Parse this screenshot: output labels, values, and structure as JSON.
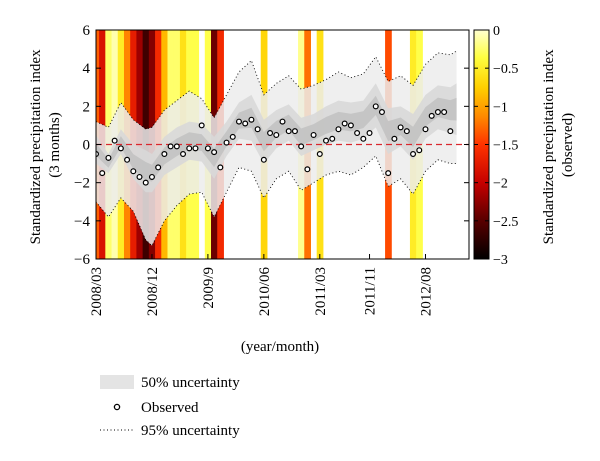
{
  "chart_data": {
    "type": "scatter",
    "ylabel_lines": [
      "Standardized precipitation index",
      "(3 months)"
    ],
    "xlabel": "(year/month)",
    "colorbar_label_lines": [
      "Standardized precipitation index",
      "(observed)"
    ],
    "ylim": [
      -6,
      6
    ],
    "yticks": [
      "6",
      "4",
      "2",
      "0",
      "−2",
      "−4",
      "−6"
    ],
    "colorbar_range": [
      -3,
      0
    ],
    "colorbar_ticks": [
      "0",
      "−0.5",
      "−1",
      "−1.5",
      "−2",
      "−2.5",
      "−3"
    ],
    "xlim": [
      0,
      60
    ],
    "xtick_labels": [
      "2008/03",
      "2008/12",
      "2009/9",
      "2010/06",
      "2011/03",
      "2011/11",
      "2012/08"
    ],
    "xtick_positions": [
      0,
      9,
      18,
      27,
      36,
      44,
      53
    ],
    "legend": {
      "band50": "50% uncertainty",
      "observed": "Observed",
      "band95": "95% uncertainty"
    },
    "observed": [
      {
        "x": 0,
        "y": -0.5
      },
      {
        "x": 1,
        "y": -1.5
      },
      {
        "x": 2,
        "y": -0.7
      },
      {
        "x": 3,
        "y": 0.2
      },
      {
        "x": 4,
        "y": -0.2
      },
      {
        "x": 5,
        "y": -0.8
      },
      {
        "x": 6,
        "y": -1.4
      },
      {
        "x": 7,
        "y": -1.7
      },
      {
        "x": 8,
        "y": -2.0
      },
      {
        "x": 9,
        "y": -1.7
      },
      {
        "x": 10,
        "y": -1.2
      },
      {
        "x": 11,
        "y": -0.5
      },
      {
        "x": 12,
        "y": -0.1
      },
      {
        "x": 13,
        "y": -0.1
      },
      {
        "x": 14,
        "y": -0.5
      },
      {
        "x": 15,
        "y": -0.2
      },
      {
        "x": 16,
        "y": -0.2
      },
      {
        "x": 17,
        "y": 1.0
      },
      {
        "x": 18,
        "y": -0.2
      },
      {
        "x": 19,
        "y": -0.4
      },
      {
        "x": 20,
        "y": -1.2
      },
      {
        "x": 21,
        "y": 0.1
      },
      {
        "x": 22,
        "y": 0.4
      },
      {
        "x": 23,
        "y": 1.2
      },
      {
        "x": 24,
        "y": 1.1
      },
      {
        "x": 25,
        "y": 1.3
      },
      {
        "x": 26,
        "y": 0.8
      },
      {
        "x": 27,
        "y": -0.8
      },
      {
        "x": 28,
        "y": 0.6
      },
      {
        "x": 29,
        "y": 0.5
      },
      {
        "x": 30,
        "y": 1.2
      },
      {
        "x": 31,
        "y": 0.7
      },
      {
        "x": 32,
        "y": 0.7
      },
      {
        "x": 33,
        "y": -0.1
      },
      {
        "x": 34,
        "y": -1.3
      },
      {
        "x": 35,
        "y": 0.5
      },
      {
        "x": 36,
        "y": -0.5
      },
      {
        "x": 37,
        "y": 0.2
      },
      {
        "x": 38,
        "y": 0.3
      },
      {
        "x": 39,
        "y": 0.8
      },
      {
        "x": 40,
        "y": 1.1
      },
      {
        "x": 41,
        "y": 1.0
      },
      {
        "x": 42,
        "y": 0.6
      },
      {
        "x": 43,
        "y": 0.3
      },
      {
        "x": 44,
        "y": 0.6
      },
      {
        "x": 45,
        "y": 2.0
      },
      {
        "x": 46,
        "y": 1.7
      },
      {
        "x": 47,
        "y": -1.5
      },
      {
        "x": 48,
        "y": 0.3
      },
      {
        "x": 49,
        "y": 0.9
      },
      {
        "x": 50,
        "y": 0.7
      },
      {
        "x": 51,
        "y": -0.5
      },
      {
        "x": 52,
        "y": -0.3
      },
      {
        "x": 53,
        "y": 0.8
      },
      {
        "x": 54,
        "y": 1.5
      },
      {
        "x": 55,
        "y": 1.7
      },
      {
        "x": 56,
        "y": 1.7
      },
      {
        "x": 57,
        "y": 0.7
      }
    ],
    "band50": [
      {
        "x": 0,
        "lo": -1.0,
        "hi": 0.5
      },
      {
        "x": 2,
        "lo": -1.5,
        "hi": -0.5
      },
      {
        "x": 4,
        "lo": -0.5,
        "hi": 0.8
      },
      {
        "x": 6,
        "lo": -1.8,
        "hi": 0.0
      },
      {
        "x": 8,
        "lo": -2.5,
        "hi": -0.3
      },
      {
        "x": 9,
        "lo": -2.5,
        "hi": -0.5
      },
      {
        "x": 11,
        "lo": -1.6,
        "hi": 0.4
      },
      {
        "x": 13,
        "lo": -1.2,
        "hi": 0.9
      },
      {
        "x": 15,
        "lo": -0.8,
        "hi": 1.2
      },
      {
        "x": 17,
        "lo": -0.9,
        "hi": 1.1
      },
      {
        "x": 19,
        "lo": -1.8,
        "hi": 0.4
      },
      {
        "x": 21,
        "lo": -0.6,
        "hi": 1.2
      },
      {
        "x": 23,
        "lo": 0.3,
        "hi": 2.2
      },
      {
        "x": 25,
        "lo": 0.2,
        "hi": 2.6
      },
      {
        "x": 27,
        "lo": -1.0,
        "hi": 1.3
      },
      {
        "x": 29,
        "lo": -0.2,
        "hi": 1.8
      },
      {
        "x": 31,
        "lo": 0.2,
        "hi": 2.1
      },
      {
        "x": 33,
        "lo": -0.6,
        "hi": 1.4
      },
      {
        "x": 35,
        "lo": -0.3,
        "hi": 1.6
      },
      {
        "x": 37,
        "lo": 0.0,
        "hi": 2.0
      },
      {
        "x": 39,
        "lo": 0.2,
        "hi": 2.3
      },
      {
        "x": 41,
        "lo": 0.1,
        "hi": 2.2
      },
      {
        "x": 43,
        "lo": 0.3,
        "hi": 2.3
      },
      {
        "x": 45,
        "lo": 0.9,
        "hi": 3.2
      },
      {
        "x": 47,
        "lo": -0.5,
        "hi": 1.9
      },
      {
        "x": 49,
        "lo": -0.1,
        "hi": 2.0
      },
      {
        "x": 51,
        "lo": -0.8,
        "hi": 1.6
      },
      {
        "x": 53,
        "lo": 0.3,
        "hi": 2.6
      },
      {
        "x": 55,
        "lo": 0.8,
        "hi": 3.1
      },
      {
        "x": 57,
        "lo": 0.6,
        "hi": 3.0
      },
      {
        "x": 58,
        "lo": 0.5,
        "hi": 3.2
      }
    ],
    "band95": [
      {
        "x": 0,
        "lo": -3.0,
        "hi": 1.2
      },
      {
        "x": 2,
        "lo": -3.8,
        "hi": 0.9
      },
      {
        "x": 4,
        "lo": -2.8,
        "hi": 2.2
      },
      {
        "x": 6,
        "lo": -3.5,
        "hi": 1.3
      },
      {
        "x": 8,
        "lo": -5.0,
        "hi": 0.8
      },
      {
        "x": 9,
        "lo": -5.3,
        "hi": 0.9
      },
      {
        "x": 11,
        "lo": -4.0,
        "hi": 1.8
      },
      {
        "x": 13,
        "lo": -3.2,
        "hi": 2.3
      },
      {
        "x": 15,
        "lo": -2.6,
        "hi": 2.8
      },
      {
        "x": 17,
        "lo": -2.5,
        "hi": 2.4
      },
      {
        "x": 19,
        "lo": -3.8,
        "hi": 1.4
      },
      {
        "x": 21,
        "lo": -2.5,
        "hi": 2.6
      },
      {
        "x": 23,
        "lo": -1.2,
        "hi": 3.8
      },
      {
        "x": 25,
        "lo": -1.4,
        "hi": 4.4
      },
      {
        "x": 27,
        "lo": -2.8,
        "hi": 2.6
      },
      {
        "x": 29,
        "lo": -1.8,
        "hi": 3.2
      },
      {
        "x": 31,
        "lo": -1.4,
        "hi": 3.6
      },
      {
        "x": 33,
        "lo": -2.4,
        "hi": 2.9
      },
      {
        "x": 35,
        "lo": -2.0,
        "hi": 3.1
      },
      {
        "x": 37,
        "lo": -1.6,
        "hi": 3.4
      },
      {
        "x": 39,
        "lo": -1.4,
        "hi": 3.8
      },
      {
        "x": 41,
        "lo": -1.6,
        "hi": 3.5
      },
      {
        "x": 43,
        "lo": -1.2,
        "hi": 3.7
      },
      {
        "x": 45,
        "lo": -0.6,
        "hi": 4.6
      },
      {
        "x": 47,
        "lo": -2.2,
        "hi": 3.3
      },
      {
        "x": 49,
        "lo": -1.8,
        "hi": 3.6
      },
      {
        "x": 51,
        "lo": -2.6,
        "hi": 3.1
      },
      {
        "x": 53,
        "lo": -1.4,
        "hi": 4.2
      },
      {
        "x": 55,
        "lo": -0.8,
        "hi": 4.8
      },
      {
        "x": 57,
        "lo": -1.0,
        "hi": 4.7
      },
      {
        "x": 58,
        "lo": -1.0,
        "hi": 4.9
      }
    ],
    "observed_stripes": [
      {
        "x": 0,
        "v": -1.5
      },
      {
        "x": 1,
        "v": -2.0
      },
      {
        "x": 2,
        "v": -0.3
      },
      {
        "x": 3,
        "v": -0.1
      },
      {
        "x": 4,
        "v": -0.6
      },
      {
        "x": 5,
        "v": -1.3
      },
      {
        "x": 6,
        "v": -1.9
      },
      {
        "x": 7,
        "v": -2.3
      },
      {
        "x": 8,
        "v": -2.7
      },
      {
        "x": 9,
        "v": -2.4
      },
      {
        "x": 10,
        "v": -1.8
      },
      {
        "x": 11,
        "v": -1.0
      },
      {
        "x": 12,
        "v": -0.3
      },
      {
        "x": 13,
        "v": -0.3
      },
      {
        "x": 14,
        "v": -0.7
      },
      {
        "x": 15,
        "v": -0.4
      },
      {
        "x": 16,
        "v": -0.4
      },
      {
        "x": 18,
        "v": -0.4
      },
      {
        "x": 19,
        "v": -2.5
      },
      {
        "x": 20,
        "v": -1.8
      },
      {
        "x": 27,
        "v": -0.8
      },
      {
        "x": 33,
        "v": -0.2
      },
      {
        "x": 34,
        "v": -1.4
      },
      {
        "x": 36,
        "v": -0.7
      },
      {
        "x": 47,
        "v": -1.6
      },
      {
        "x": 51,
        "v": -0.6
      },
      {
        "x": 52,
        "v": -0.4
      }
    ],
    "reference_line": 0,
    "colors": {
      "band50": "#d8d8d8",
      "band95": "#ececec",
      "band_inner": "#bdbdbd",
      "reference_line": "#d9282f",
      "colormap": [
        "#000000",
        "#5a0000",
        "#c40000",
        "#ff3300",
        "#ff8800",
        "#ffd000",
        "#ffff40",
        "#ffffd0"
      ]
    }
  }
}
